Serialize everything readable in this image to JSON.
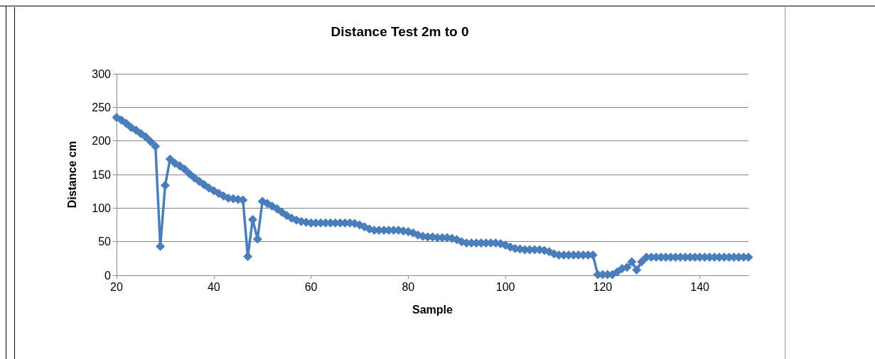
{
  "chart_data": {
    "type": "line",
    "title": "Distance Test 2m to 0",
    "xlabel": "Sample",
    "ylabel": "Distance cm",
    "x": [
      20,
      21,
      22,
      23,
      24,
      25,
      26,
      27,
      28,
      29,
      30,
      31,
      32,
      33,
      34,
      35,
      36,
      37,
      38,
      39,
      40,
      41,
      42,
      43,
      44,
      45,
      46,
      47,
      48,
      49,
      50,
      51,
      52,
      53,
      54,
      55,
      56,
      57,
      58,
      59,
      60,
      61,
      62,
      63,
      64,
      65,
      66,
      67,
      68,
      69,
      70,
      71,
      72,
      73,
      74,
      75,
      76,
      77,
      78,
      79,
      80,
      81,
      82,
      83,
      84,
      85,
      86,
      87,
      88,
      89,
      90,
      91,
      92,
      93,
      94,
      95,
      96,
      97,
      98,
      99,
      100,
      101,
      102,
      103,
      104,
      105,
      106,
      107,
      108,
      109,
      110,
      111,
      112,
      113,
      114,
      115,
      116,
      117,
      118,
      119,
      120,
      121,
      122,
      123,
      124,
      125,
      126,
      127,
      128,
      129,
      130,
      131,
      132,
      133,
      134,
      135,
      136,
      137,
      138,
      139,
      140,
      141,
      142,
      143,
      144,
      145,
      146,
      147,
      148,
      149,
      150
    ],
    "series": [
      {
        "color": "#4a7ebb",
        "values": [
          235,
          231,
          226,
          220,
          216,
          211,
          206,
          199,
          192,
          43,
          134,
          173,
          167,
          163,
          158,
          151,
          145,
          140,
          135,
          130,
          126,
          122,
          118,
          115,
          114,
          113,
          112,
          28,
          83,
          54,
          110,
          107,
          103,
          99,
          94,
          89,
          85,
          82,
          80,
          79,
          78,
          78,
          78,
          78,
          78,
          78,
          78,
          78,
          78,
          77,
          75,
          72,
          69,
          67,
          67,
          67,
          67,
          67,
          67,
          66,
          65,
          63,
          60,
          58,
          57,
          57,
          56,
          56,
          56,
          55,
          53,
          50,
          48,
          48,
          48,
          48,
          48,
          48,
          48,
          47,
          45,
          42,
          40,
          39,
          38,
          38,
          38,
          38,
          37,
          35,
          32,
          30,
          30,
          30,
          30,
          30,
          30,
          30,
          30,
          1,
          1,
          1,
          1,
          5,
          10,
          12,
          20,
          8,
          20,
          27,
          27,
          27,
          27,
          27,
          27,
          27,
          27,
          27,
          27,
          27,
          27,
          27,
          27,
          27,
          27,
          27,
          27,
          27,
          27,
          27,
          27
        ]
      }
    ],
    "xlim": [
      20,
      150
    ],
    "xticks": [
      20,
      40,
      60,
      80,
      100,
      120,
      140
    ],
    "ylim": [
      0,
      300
    ],
    "yticks": [
      0,
      50,
      100,
      150,
      200,
      250,
      300
    ],
    "grid": "y",
    "marker": "diamond",
    "line_style": "solid"
  }
}
